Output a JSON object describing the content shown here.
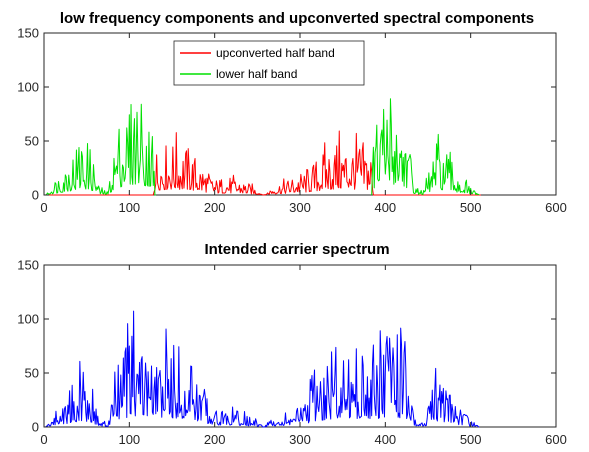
{
  "chart_data": [
    {
      "type": "line",
      "title": "low frequency components and upconverted spectral components",
      "xlabel": "",
      "ylabel": "",
      "xlim": [
        0,
        600
      ],
      "ylim": [
        0,
        150
      ],
      "xticks": [
        0,
        100,
        200,
        300,
        400,
        500,
        600
      ],
      "yticks": [
        0,
        50,
        100,
        150
      ],
      "grid": false,
      "legend": {
        "position": "top-center",
        "visible": true
      },
      "series": [
        {
          "name": "upconverted half band",
          "color": "#ff0000",
          "envelope": [
            [
              0,
              0
            ],
            [
              128,
              0
            ],
            [
              130,
              30
            ],
            [
              140,
              32
            ],
            [
              155,
              35
            ],
            [
              170,
              30
            ],
            [
              185,
              20
            ],
            [
              200,
              10
            ],
            [
              215,
              12
            ],
            [
              230,
              10
            ],
            [
              245,
              6
            ],
            [
              258,
              0
            ],
            [
              268,
              6
            ],
            [
              285,
              10
            ],
            [
              300,
              14
            ],
            [
              315,
              20
            ],
            [
              330,
              30
            ],
            [
              345,
              36
            ],
            [
              360,
              35
            ],
            [
              375,
              34
            ],
            [
              384,
              30
            ],
            [
              386,
              0
            ],
            [
              512,
              0
            ]
          ],
          "gaps": []
        },
        {
          "name": "lower half band",
          "color": "#00e000",
          "envelope": [
            [
              0,
              0
            ],
            [
              2,
              0
            ],
            [
              15,
              12
            ],
            [
              30,
              24
            ],
            [
              45,
              40
            ],
            [
              55,
              30
            ],
            [
              65,
              5
            ],
            [
              75,
              2
            ],
            [
              85,
              45
            ],
            [
              100,
              60
            ],
            [
              110,
              70
            ],
            [
              120,
              55
            ],
            [
              128,
              45
            ],
            [
              130,
              0
            ],
            [
              384,
              0
            ],
            [
              386,
              40
            ],
            [
              395,
              55
            ],
            [
              405,
              70
            ],
            [
              415,
              60
            ],
            [
              425,
              45
            ],
            [
              435,
              5
            ],
            [
              445,
              3
            ],
            [
              460,
              35
            ],
            [
              470,
              30
            ],
            [
              485,
              15
            ],
            [
              500,
              5
            ],
            [
              510,
              0
            ]
          ],
          "gaps": [
            [
              132,
              383
            ]
          ]
        }
      ]
    },
    {
      "type": "line",
      "title": "Intended carrier spectrum",
      "xlabel": "",
      "ylabel": "",
      "xlim": [
        0,
        600
      ],
      "ylim": [
        0,
        150
      ],
      "xticks": [
        0,
        100,
        200,
        300,
        400,
        500,
        600
      ],
      "yticks": [
        0,
        50,
        100,
        150
      ],
      "grid": false,
      "legend": {
        "visible": false
      },
      "series": [
        {
          "name": "",
          "color": "#0000ff",
          "envelope": [
            [
              0,
              0
            ],
            [
              2,
              0
            ],
            [
              15,
              12
            ],
            [
              30,
              24
            ],
            [
              45,
              40
            ],
            [
              55,
              30
            ],
            [
              65,
              5
            ],
            [
              75,
              2
            ],
            [
              85,
              45
            ],
            [
              100,
              60
            ],
            [
              110,
              70
            ],
            [
              120,
              55
            ],
            [
              130,
              45
            ],
            [
              140,
              55
            ],
            [
              155,
              55
            ],
            [
              170,
              45
            ],
            [
              185,
              30
            ],
            [
              200,
              12
            ],
            [
              215,
              12
            ],
            [
              230,
              10
            ],
            [
              245,
              6
            ],
            [
              258,
              0
            ],
            [
              268,
              6
            ],
            [
              285,
              10
            ],
            [
              300,
              14
            ],
            [
              315,
              30
            ],
            [
              330,
              45
            ],
            [
              345,
              55
            ],
            [
              360,
              55
            ],
            [
              375,
              50
            ],
            [
              385,
              45
            ],
            [
              395,
              55
            ],
            [
              405,
              70
            ],
            [
              415,
              60
            ],
            [
              425,
              45
            ],
            [
              435,
              5
            ],
            [
              445,
              3
            ],
            [
              460,
              35
            ],
            [
              470,
              30
            ],
            [
              485,
              15
            ],
            [
              500,
              5
            ],
            [
              510,
              0
            ]
          ],
          "gaps": []
        }
      ]
    }
  ]
}
